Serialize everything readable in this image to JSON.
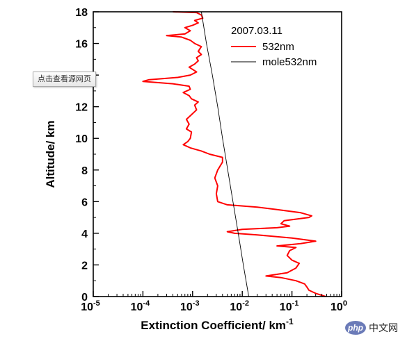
{
  "chart_data": {
    "type": "line",
    "title": "",
    "annotation": "2007.03.11",
    "xlabel": "Extinction Coefficient/ km",
    "xlabel_superscript": "-1",
    "ylabel": "Altitude/ km",
    "x_scale": "log",
    "xlim": [
      1e-05,
      1
    ],
    "ylim": [
      0,
      18
    ],
    "x_tick_labels": [
      {
        "base": "10",
        "exp": "-5"
      },
      {
        "base": "10",
        "exp": "-4"
      },
      {
        "base": "10",
        "exp": "-3"
      },
      {
        "base": "10",
        "exp": "-2"
      },
      {
        "base": "10",
        "exp": "-1"
      },
      {
        "base": "10",
        "exp": "0"
      }
    ],
    "y_tick_labels": [
      "0",
      "2",
      "4",
      "6",
      "8",
      "10",
      "12",
      "14",
      "16",
      "18"
    ],
    "grid": false,
    "legend_position": "top-right",
    "series": [
      {
        "name": "532nm",
        "color": "#ff0000",
        "points": [
          [
            0.48,
            0.0
          ],
          [
            0.3,
            0.2
          ],
          [
            0.22,
            0.4
          ],
          [
            0.2,
            0.6
          ],
          [
            0.18,
            0.8
          ],
          [
            0.12,
            1.0
          ],
          [
            0.06,
            1.2
          ],
          [
            0.03,
            1.3
          ],
          [
            0.08,
            1.5
          ],
          [
            0.12,
            1.8
          ],
          [
            0.14,
            2.1
          ],
          [
            0.1,
            2.3
          ],
          [
            0.08,
            2.6
          ],
          [
            0.09,
            2.9
          ],
          [
            0.12,
            3.1
          ],
          [
            0.05,
            3.2
          ],
          [
            0.15,
            3.35
          ],
          [
            0.3,
            3.5
          ],
          [
            0.1,
            3.7
          ],
          [
            0.02,
            3.9
          ],
          [
            0.007,
            4.0
          ],
          [
            0.005,
            4.1
          ],
          [
            0.01,
            4.25
          ],
          [
            0.05,
            4.35
          ],
          [
            0.09,
            4.45
          ],
          [
            0.06,
            4.6
          ],
          [
            0.07,
            4.8
          ],
          [
            0.22,
            5.0
          ],
          [
            0.25,
            5.1
          ],
          [
            0.15,
            5.3
          ],
          [
            0.05,
            5.5
          ],
          [
            0.02,
            5.65
          ],
          [
            0.005,
            5.8
          ],
          [
            0.0032,
            6.0
          ],
          [
            0.003,
            6.5
          ],
          [
            0.0032,
            7.0
          ],
          [
            0.0028,
            7.5
          ],
          [
            0.0032,
            8.0
          ],
          [
            0.004,
            8.5
          ],
          [
            0.004,
            8.8
          ],
          [
            0.0022,
            9.0
          ],
          [
            0.0015,
            9.2
          ],
          [
            0.0009,
            9.4
          ],
          [
            0.00065,
            9.6
          ],
          [
            0.0008,
            9.8
          ],
          [
            0.0009,
            10.0
          ],
          [
            0.00095,
            10.4
          ],
          [
            0.00075,
            10.6
          ],
          [
            0.00085,
            10.9
          ],
          [
            0.00075,
            11.2
          ],
          [
            0.00095,
            11.5
          ],
          [
            0.0012,
            11.8
          ],
          [
            0.0011,
            12.1
          ],
          [
            0.0013,
            12.3
          ],
          [
            0.00095,
            12.5
          ],
          [
            0.00085,
            12.7
          ],
          [
            0.00065,
            12.9
          ],
          [
            0.0009,
            13.1
          ],
          [
            0.00085,
            13.3
          ],
          [
            0.0004,
            13.45
          ],
          [
            0.0001,
            13.6
          ],
          [
            0.00013,
            13.7
          ],
          [
            0.0005,
            13.85
          ],
          [
            0.0009,
            14.0
          ],
          [
            0.0012,
            14.2
          ],
          [
            0.00085,
            14.5
          ],
          [
            0.0011,
            14.7
          ],
          [
            0.0013,
            14.9
          ],
          [
            0.0012,
            15.1
          ],
          [
            0.0015,
            15.3
          ],
          [
            0.0013,
            15.5
          ],
          [
            0.0015,
            15.8
          ],
          [
            0.0011,
            16.0
          ],
          [
            0.0009,
            16.2
          ],
          [
            0.0006,
            16.4
          ],
          [
            0.0003,
            16.5
          ],
          [
            0.0007,
            16.6
          ],
          [
            0.0009,
            16.8
          ],
          [
            0.0007,
            17.0
          ],
          [
            0.001,
            17.15
          ],
          [
            0.0013,
            17.3
          ],
          [
            0.0011,
            17.45
          ],
          [
            0.0016,
            17.6
          ],
          [
            0.0015,
            17.8
          ],
          [
            0.0012,
            17.95
          ],
          [
            0.0004,
            18.0
          ]
        ]
      },
      {
        "name": "mole532nm",
        "color": "#000000",
        "points": [
          [
            0.0135,
            0
          ],
          [
            0.0105,
            2
          ],
          [
            0.0083,
            4
          ],
          [
            0.0065,
            6
          ],
          [
            0.0051,
            8
          ],
          [
            0.004,
            10
          ],
          [
            0.0032,
            12
          ],
          [
            0.0025,
            14
          ],
          [
            0.0019,
            16
          ],
          [
            0.0015,
            18
          ]
        ]
      }
    ]
  },
  "overlay": {
    "view_source_label": "点击查看源网页"
  },
  "watermark": {
    "logo_text": "php",
    "site_text": "中文网"
  }
}
